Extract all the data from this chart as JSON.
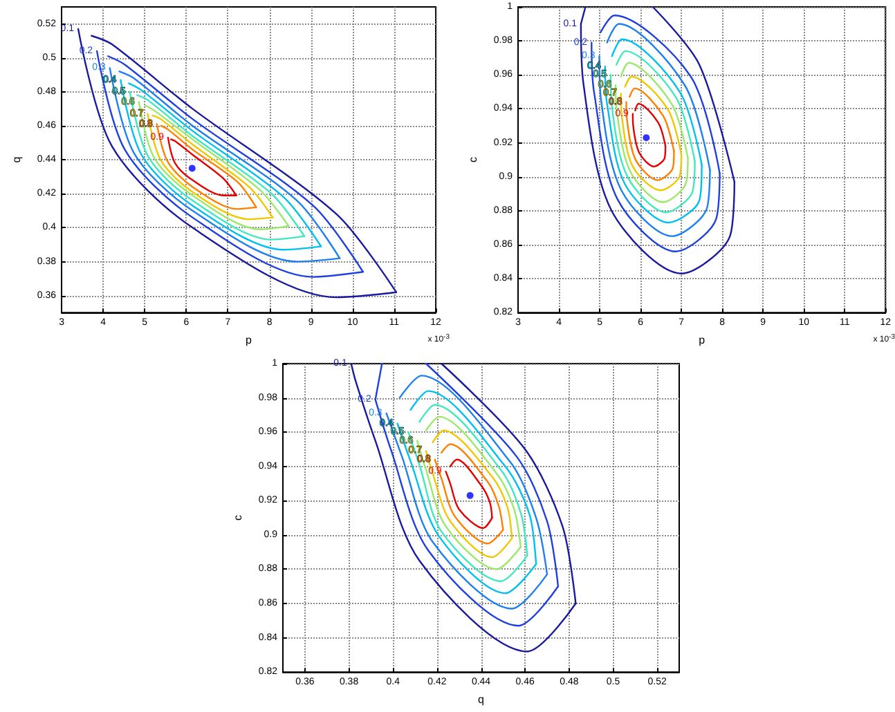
{
  "chart_data": [
    {
      "type": "line",
      "xlabel": "p",
      "ylabel": "q",
      "annotations": [
        "x 10$^{-3}$"
      ],
      "xlim": [
        3,
        12
      ],
      "xticks": [
        3,
        4,
        5,
        6,
        7,
        8,
        9,
        10,
        11,
        12
      ],
      "ylim": [
        0.35,
        0.53
      ],
      "yticks": [
        0.36,
        0.38,
        0.4,
        0.42,
        0.44,
        0.46,
        0.48,
        0.5,
        0.52
      ],
      "grid": true,
      "marker": "none",
      "line_style": "solid",
      "series": [
        {
          "name": "0.1",
          "color": "#1a1aa0",
          "x": [
            3.4,
            4.21,
            6.15,
            9.61,
            11.05
          ],
          "values": [
            0.517,
            0.448,
            0.4,
            0.359,
            0.362
          ]
        },
        {
          "color": "#1a1aa0",
          "x": [
            3.72,
            4.21,
            6.15,
            9.61,
            11.05
          ],
          "values": [
            0.513,
            0.508,
            0.47,
            0.408,
            0.362
          ]
        },
        {
          "name": "0.2",
          "color": "#1f3fe0",
          "x": [
            3.85,
            4.52,
            6.15,
            9.05,
            10.25
          ],
          "values": [
            0.504,
            0.446,
            0.406,
            0.371,
            0.374
          ]
        },
        {
          "color": "#1f3fe0",
          "x": [
            4.12,
            4.52,
            6.15,
            9.05,
            10.25
          ],
          "values": [
            0.501,
            0.496,
            0.464,
            0.413,
            0.374
          ]
        },
        {
          "name": "0.3",
          "color": "#1e7ff0",
          "x": [
            4.16,
            4.74,
            6.15,
            8.66,
            9.69
          ],
          "values": [
            0.494,
            0.444,
            0.41,
            0.38,
            0.382
          ]
        },
        {
          "color": "#1e7ff0",
          "x": [
            4.39,
            4.74,
            6.15,
            8.66,
            9.69
          ],
          "values": [
            0.492,
            0.488,
            0.46,
            0.416,
            0.382
          ]
        },
        {
          "name": "0.4",
          "color": "#00c0f0",
          "x": [
            4.42,
            4.92,
            6.15,
            8.34,
            9.24
          ],
          "values": [
            0.487,
            0.443,
            0.413,
            0.387,
            0.389
          ]
        },
        {
          "color": "#00c0f0",
          "x": [
            4.62,
            4.92,
            6.15,
            8.34,
            9.24
          ],
          "values": [
            0.485,
            0.481,
            0.457,
            0.418,
            0.389
          ]
        },
        {
          "name": "0.5",
          "color": "#40e8c0",
          "x": [
            4.64,
            5.08,
            6.15,
            8.05,
            8.84
          ],
          "values": [
            0.48,
            0.442,
            0.416,
            0.393,
            0.395
          ]
        },
        {
          "color": "#40e8c0",
          "x": [
            4.82,
            5.08,
            6.15,
            8.05,
            8.84
          ],
          "values": [
            0.478,
            0.475,
            0.454,
            0.42,
            0.395
          ]
        },
        {
          "name": "0.6",
          "color": "#9be86a",
          "x": [
            4.86,
            5.23,
            6.15,
            7.78,
            8.46
          ],
          "values": [
            0.474,
            0.441,
            0.419,
            0.399,
            0.401
          ]
        },
        {
          "color": "#9be86a",
          "x": [
            5.01,
            5.23,
            6.15,
            7.78,
            8.46
          ],
          "values": [
            0.472,
            0.469,
            0.452,
            0.422,
            0.401
          ]
        },
        {
          "name": "0.7",
          "color": "#f0c800",
          "x": [
            5.07,
            5.38,
            6.15,
            7.51,
            8.08
          ],
          "values": [
            0.467,
            0.44,
            0.421,
            0.405,
            0.406
          ]
        },
        {
          "color": "#f0c800",
          "x": [
            5.19,
            5.38,
            6.15,
            7.51,
            8.08
          ],
          "values": [
            0.466,
            0.464,
            0.449,
            0.424,
            0.406
          ]
        },
        {
          "name": "0.8",
          "color": "#ff7f00",
          "x": [
            5.29,
            5.55,
            6.15,
            7.23,
            7.68
          ],
          "values": [
            0.461,
            0.439,
            0.424,
            0.411,
            0.412
          ]
        },
        {
          "color": "#ff7f00",
          "x": [
            5.39,
            5.55,
            6.15,
            7.23,
            7.68
          ],
          "values": [
            0.46,
            0.458,
            0.446,
            0.427,
            0.412
          ]
        },
        {
          "name": "0.9",
          "color": "#e60000",
          "x": [
            5.56,
            5.73,
            6.15,
            6.89,
            7.2
          ],
          "values": [
            0.453,
            0.438,
            0.428,
            0.419,
            0.419
          ]
        },
        {
          "color": "#e60000",
          "x": [
            5.63,
            5.73,
            6.15,
            6.89,
            7.2
          ],
          "values": [
            0.452,
            0.451,
            0.443,
            0.429,
            0.419
          ]
        },
        {
          "type": "scatter",
          "marker": "circle",
          "color": "#0000ff",
          "x": [
            6.14
          ],
          "values": [
            0.435
          ]
        }
      ]
    },
    {
      "type": "line",
      "xlabel": "p",
      "ylabel": "c",
      "annotations": [
        "x 10$^{-3}$"
      ],
      "xlim": [
        3,
        12
      ],
      "xticks": [
        3,
        4,
        5,
        6,
        7,
        8,
        9,
        10,
        11,
        12
      ],
      "ylim": [
        0.82,
        1
      ],
      "yticks": [
        0.82,
        0.84,
        0.86,
        0.88,
        0.9,
        0.92,
        0.94,
        0.96,
        0.98,
        1
      ],
      "grid": true,
      "marker": "none",
      "line_style": "solid",
      "series": [
        {
          "name": "0.1",
          "color": "#1a1aa0",
          "x": [
            4.54,
            4.6,
            5.29,
            7.0,
            8.19,
            8.3
          ],
          "values": [
            0.99,
            0.955,
            0.88,
            0.843,
            0.865,
            0.897
          ]
        },
        {
          "color": "#1a1aa0",
          "x": [
            4.54,
            4.65
          ],
          "values": [
            0.99,
            1.0
          ]
        },
        {
          "color": "#1a1aa0",
          "x": [
            6.3,
            7.44,
            8.3
          ],
          "values": [
            1.0,
            0.966,
            0.897
          ]
        },
        {
          "name": "0.2",
          "color": "#1f3fe0",
          "x": [
            4.8,
            4.86,
            5.43,
            6.86,
            7.85,
            7.94
          ],
          "values": [
            0.979,
            0.95,
            0.887,
            0.856,
            0.875,
            0.902
          ]
        },
        {
          "color": "#1f3fe0",
          "x": [
            5.02,
            5.36,
            7.23,
            7.94
          ],
          "values": [
            0.985,
            0.995,
            0.959,
            0.902
          ]
        },
        {
          "name": "0.3",
          "color": "#1e7ff0",
          "x": [
            4.99,
            5.03,
            5.53,
            6.77,
            7.62,
            7.7
          ],
          "values": [
            0.971,
            0.946,
            0.892,
            0.865,
            0.881,
            0.904
          ]
        },
        {
          "color": "#1e7ff0",
          "x": [
            5.18,
            5.47,
            7.08,
            7.7
          ],
          "values": [
            0.979,
            0.99,
            0.954,
            0.904
          ]
        },
        {
          "name": "0.4",
          "color": "#00c0f0",
          "x": [
            5.13,
            5.18,
            5.61,
            6.69,
            7.44,
            7.5
          ],
          "values": [
            0.965,
            0.943,
            0.896,
            0.873,
            0.886,
            0.907
          ]
        },
        {
          "color": "#00c0f0",
          "x": [
            5.3,
            5.55,
            6.96,
            7.5
          ],
          "values": [
            0.971,
            0.981,
            0.95,
            0.907
          ]
        },
        {
          "name": "0.5",
          "color": "#40e8c0",
          "x": [
            5.27,
            5.3,
            5.68,
            6.62,
            7.27,
            7.33
          ],
          "values": [
            0.96,
            0.941,
            0.9,
            0.879,
            0.891,
            0.909
          ]
        },
        {
          "color": "#40e8c0",
          "x": [
            5.41,
            5.63,
            6.86,
            7.33
          ],
          "values": [
            0.966,
            0.974,
            0.947,
            0.909
          ]
        },
        {
          "name": "0.6",
          "color": "#9be86a",
          "x": [
            5.39,
            5.42,
            5.75,
            6.55,
            7.11,
            7.16
          ],
          "values": [
            0.954,
            0.938,
            0.903,
            0.885,
            0.896,
            0.911
          ]
        },
        {
          "color": "#9be86a",
          "x": [
            5.52,
            5.71,
            6.76,
            7.16
          ],
          "values": [
            0.959,
            0.967,
            0.943,
            0.911
          ]
        },
        {
          "name": "0.7",
          "color": "#f0c800",
          "x": [
            5.52,
            5.54,
            5.81,
            6.49,
            6.95,
            7.0
          ],
          "values": [
            0.949,
            0.936,
            0.906,
            0.892,
            0.9,
            0.913
          ]
        },
        {
          "color": "#f0c800",
          "x": [
            5.62,
            5.78,
            6.66,
            7.0
          ],
          "values": [
            0.953,
            0.959,
            0.94,
            0.913
          ]
        },
        {
          "name": "0.8",
          "color": "#ff7f00",
          "x": [
            5.65,
            5.67,
            5.88,
            6.42,
            6.79,
            6.82
          ],
          "values": [
            0.944,
            0.933,
            0.91,
            0.898,
            0.905,
            0.915
          ]
        },
        {
          "color": "#ff7f00",
          "x": [
            5.73,
            5.86,
            6.55,
            6.82
          ],
          "values": [
            0.947,
            0.952,
            0.936,
            0.915
          ]
        },
        {
          "name": "0.9",
          "color": "#e60000",
          "x": [
            5.81,
            5.82,
            5.97,
            6.33,
            6.59,
            6.61
          ],
          "values": [
            0.937,
            0.93,
            0.914,
            0.906,
            0.911,
            0.918
          ]
        },
        {
          "color": "#e60000",
          "x": [
            5.87,
            5.95,
            6.43,
            6.61
          ],
          "values": [
            0.939,
            0.943,
            0.932,
            0.918
          ]
        },
        {
          "type": "scatter",
          "marker": "circle",
          "color": "#0000ff",
          "x": [
            6.14
          ],
          "values": [
            0.923
          ]
        }
      ]
    },
    {
      "type": "line",
      "xlabel": "q",
      "ylabel": "c",
      "xlim": [
        0.35,
        0.53
      ],
      "xticks": [
        0.36,
        0.38,
        0.4,
        0.42,
        0.44,
        0.46,
        0.48,
        0.5,
        0.52
      ],
      "ylim": [
        0.82,
        1
      ],
      "yticks": [
        0.82,
        0.84,
        0.86,
        0.88,
        0.9,
        0.92,
        0.94,
        0.96,
        0.98,
        1
      ],
      "grid": true,
      "marker": "none",
      "line_style": "solid",
      "series": [
        {
          "name": "0.1",
          "color": "#1a1aa0",
          "x": [
            0.381,
            0.383,
            0.392,
            0.412,
            0.461,
            0.483
          ],
          "values": [
            1.0,
            0.99,
            0.955,
            0.885,
            0.832,
            0.86
          ]
        },
        {
          "color": "#1a1aa0",
          "x": [
            0.422,
            0.46,
            0.477,
            0.483
          ],
          "values": [
            1.0,
            0.95,
            0.905,
            0.86
          ]
        },
        {
          "name": "0.2",
          "color": "#1f3fe0",
          "x": [
            0.392,
            0.399,
            0.416,
            0.457,
            0.475
          ],
          "values": [
            0.979,
            0.95,
            0.891,
            0.847,
            0.87
          ]
        },
        {
          "color": "#1f3fe0",
          "x": [
            0.392,
            0.395
          ],
          "values": [
            0.979,
            1.0
          ]
        },
        {
          "color": "#1f3fe0",
          "x": [
            0.415,
            0.456,
            0.47,
            0.475
          ],
          "values": [
            1.0,
            0.946,
            0.908,
            0.87
          ]
        },
        {
          "name": "0.3",
          "color": "#1e7ff0",
          "x": [
            0.397,
            0.404,
            0.418,
            0.454,
            0.47
          ],
          "values": [
            0.971,
            0.946,
            0.896,
            0.857,
            0.877
          ]
        },
        {
          "color": "#1e7ff0",
          "x": [
            0.403,
            0.413,
            0.453,
            0.465,
            0.47
          ],
          "values": [
            0.98,
            0.993,
            0.943,
            0.91,
            0.877
          ]
        },
        {
          "name": "0.4",
          "color": "#00c0f0",
          "x": [
            0.402,
            0.408,
            0.421,
            0.451,
            0.465
          ],
          "values": [
            0.965,
            0.943,
            0.899,
            0.866,
            0.883
          ]
        },
        {
          "color": "#00c0f0",
          "x": [
            0.408,
            0.416,
            0.451,
            0.462,
            0.465
          ],
          "values": [
            0.973,
            0.984,
            0.94,
            0.912,
            0.883
          ]
        },
        {
          "name": "0.5",
          "color": "#40e8c0",
          "x": [
            0.407,
            0.412,
            0.422,
            0.449,
            0.461
          ],
          "values": [
            0.96,
            0.941,
            0.902,
            0.873,
            0.888
          ]
        },
        {
          "color": "#40e8c0",
          "x": [
            0.412,
            0.419,
            0.449,
            0.458,
            0.461
          ],
          "values": [
            0.966,
            0.976,
            0.938,
            0.913,
            0.888
          ]
        },
        {
          "name": "0.6",
          "color": "#9be86a",
          "x": [
            0.411,
            0.415,
            0.424,
            0.447,
            0.458
          ],
          "values": [
            0.955,
            0.938,
            0.905,
            0.88,
            0.893
          ]
        },
        {
          "color": "#9be86a",
          "x": [
            0.415,
            0.421,
            0.447,
            0.455,
            0.458
          ],
          "values": [
            0.961,
            0.969,
            0.936,
            0.915,
            0.893
          ]
        },
        {
          "name": "0.7",
          "color": "#f0c800",
          "x": [
            0.415,
            0.418,
            0.426,
            0.445,
            0.454
          ],
          "values": [
            0.949,
            0.936,
            0.908,
            0.887,
            0.898
          ]
        },
        {
          "color": "#f0c800",
          "x": [
            0.418,
            0.423,
            0.445,
            0.452,
            0.454
          ],
          "values": [
            0.954,
            0.961,
            0.934,
            0.916,
            0.898
          ]
        },
        {
          "name": "0.8",
          "color": "#ff7f00",
          "x": [
            0.419,
            0.422,
            0.428,
            0.443,
            0.45
          ],
          "values": [
            0.944,
            0.933,
            0.911,
            0.895,
            0.903
          ]
        },
        {
          "color": "#ff7f00",
          "x": [
            0.422,
            0.426,
            0.443,
            0.448,
            0.45
          ],
          "values": [
            0.948,
            0.953,
            0.931,
            0.917,
            0.903
          ]
        },
        {
          "name": "0.9",
          "color": "#e60000",
          "x": [
            0.424,
            0.426,
            0.43,
            0.441,
            0.445
          ],
          "values": [
            0.937,
            0.93,
            0.915,
            0.904,
            0.91
          ]
        },
        {
          "color": "#e60000",
          "x": [
            0.426,
            0.429,
            0.44,
            0.444,
            0.445
          ],
          "values": [
            0.94,
            0.944,
            0.929,
            0.919,
            0.91
          ]
        },
        {
          "type": "scatter",
          "marker": "circle",
          "color": "#0000ff",
          "x": [
            0.435
          ],
          "values": [
            0.923
          ]
        }
      ]
    }
  ]
}
